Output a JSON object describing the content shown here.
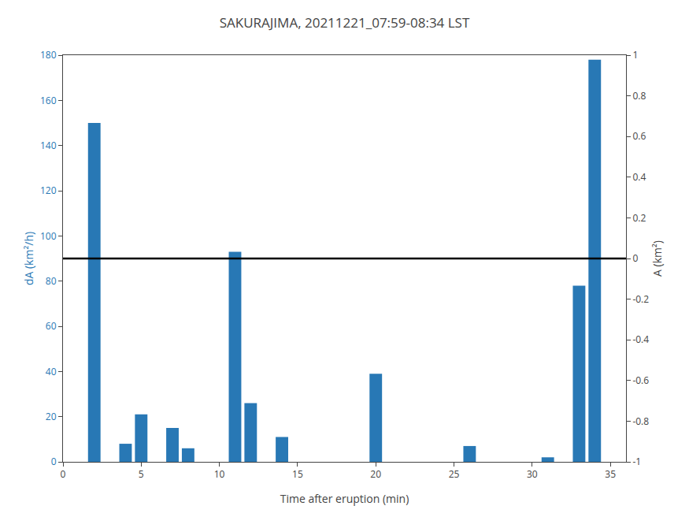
{
  "chart_data": {
    "type": "bar",
    "title": "SAKURAJIMA, 20211221_07:59-08:34 LST",
    "xlabel": "Time after eruption (min)",
    "ylabel": "dA (km²/h)",
    "y2label": "A (km²)",
    "x": [
      2,
      4,
      5,
      7,
      8,
      11,
      12,
      14,
      20,
      26,
      31,
      33,
      34
    ],
    "values": [
      150,
      8,
      21,
      15,
      6,
      93,
      26,
      11,
      39,
      7,
      2,
      78,
      178
    ],
    "color": "#2878b5",
    "hline": {
      "value": 90,
      "color": "black"
    },
    "xlim": [
      0,
      36
    ],
    "xticks": [
      0,
      5,
      10,
      15,
      20,
      25,
      30,
      35
    ],
    "ylim": [
      0,
      180
    ],
    "yticks": [
      0,
      20,
      40,
      60,
      80,
      100,
      120,
      140,
      160,
      180
    ],
    "y2lim": [
      -1,
      1
    ],
    "y2ticks": [
      -1,
      -0.8,
      -0.6,
      -0.4,
      -0.2,
      0,
      0.2,
      0.4,
      0.6,
      0.8,
      1
    ],
    "grid": false
  }
}
